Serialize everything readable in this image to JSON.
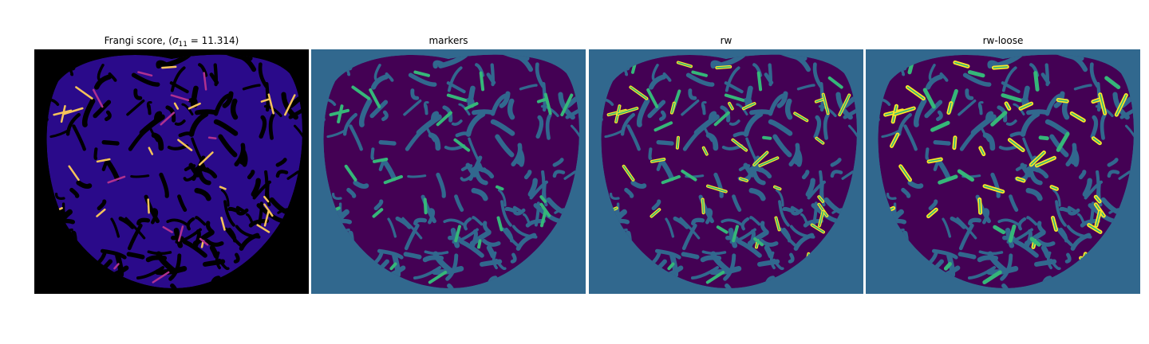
{
  "figure": {
    "panels": [
      {
        "id": "frangi",
        "title_prefix": "Frangi score, (",
        "title_sigma": "σ",
        "title_sub": "11",
        "title_suffix": " = 11.314)",
        "background": "#000000",
        "blob": "#2a0a8a",
        "accent": "#f6c35a",
        "accent2": "#b0318f"
      },
      {
        "id": "markers",
        "title": "markers",
        "background": "#31688e",
        "blob": "#440154",
        "accent": "#35b779",
        "accent2": "#35b779"
      },
      {
        "id": "rw",
        "title": "rw",
        "background": "#31688e",
        "blob": "#440154",
        "accent": "#fde725",
        "accent2": "#35b779"
      },
      {
        "id": "rw-loose",
        "title": "rw-loose",
        "background": "#31688e",
        "blob": "#440154",
        "accent": "#fde725",
        "accent2": "#35b779"
      }
    ]
  }
}
